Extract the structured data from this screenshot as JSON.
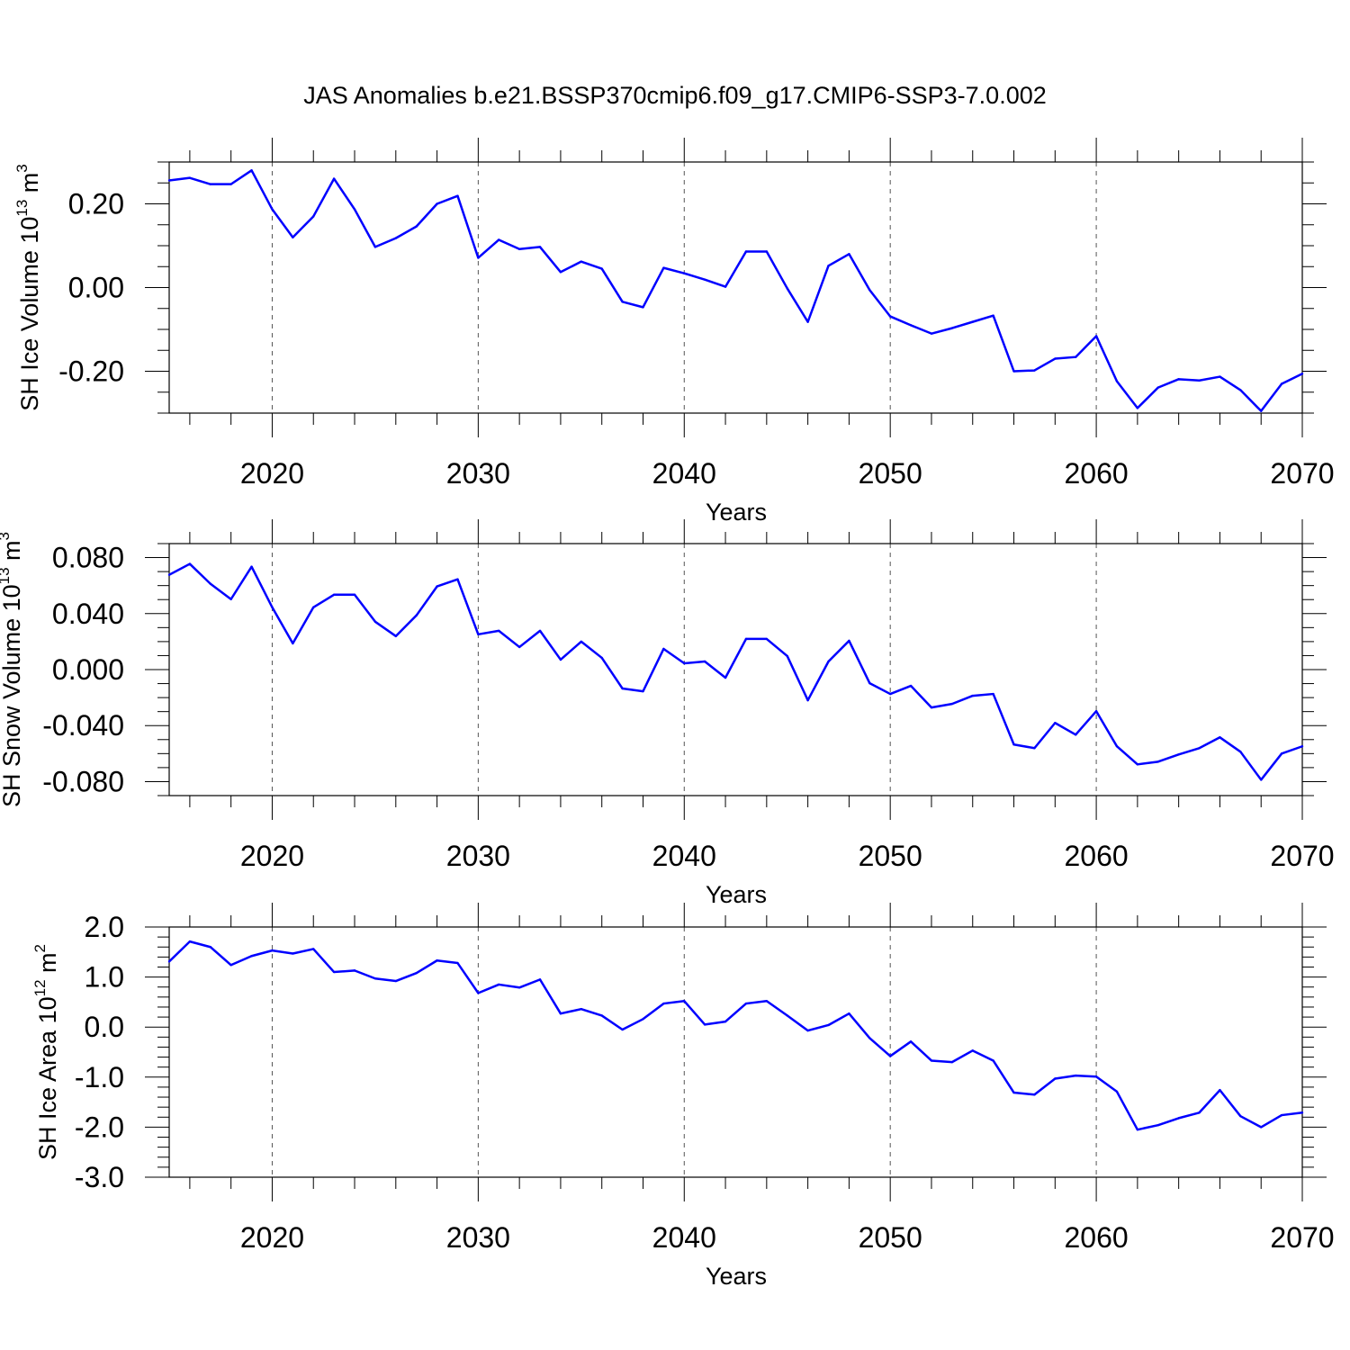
{
  "title": "JAS Anomalies b.e21.BSSP370cmip6.f09_g17.CMIP6-SSP3-7.0.002",
  "colors": {
    "line": "#0000ff",
    "axis": "#000000",
    "grid": "#555555"
  },
  "chart_data": [
    {
      "type": "line",
      "ylabel": "SH Ice Volume 10",
      "ylabel_sup": "13",
      "ylabel_unit": " m",
      "ylabel_unit_sup": "3",
      "xlabel": "Years",
      "xlim": [
        2015,
        2070
      ],
      "ylim": [
        -0.3,
        0.3
      ],
      "grid": "dashed vertical at major x ticks",
      "x_ticks": [
        "2020",
        "2030",
        "2040",
        "2050",
        "2060",
        "2070"
      ],
      "y_ticks": [
        "0.20",
        "0.00",
        "-0.20"
      ],
      "y_tick_values": [
        0.2,
        0.0,
        -0.2
      ],
      "x": [
        2015,
        2016,
        2017,
        2018,
        2019,
        2020,
        2021,
        2022,
        2023,
        2024,
        2025,
        2026,
        2027,
        2028,
        2029,
        2030,
        2031,
        2032,
        2033,
        2034,
        2035,
        2036,
        2037,
        2038,
        2039,
        2040,
        2041,
        2042,
        2043,
        2044,
        2045,
        2046,
        2047,
        2048,
        2049,
        2050,
        2051,
        2052,
        2053,
        2054,
        2055,
        2056,
        2057,
        2058,
        2059,
        2060,
        2061,
        2062,
        2063,
        2064,
        2065,
        2066,
        2067,
        2068,
        2069,
        2070
      ],
      "values": [
        0.256,
        0.262,
        0.247,
        0.247,
        0.28,
        0.187,
        0.12,
        0.17,
        0.26,
        0.187,
        0.097,
        0.118,
        0.146,
        0.2,
        0.219,
        0.071,
        0.114,
        0.092,
        0.097,
        0.037,
        0.062,
        0.045,
        -0.034,
        -0.047,
        0.047,
        0.034,
        0.019,
        0.002,
        0.086,
        0.086,
        -0.002,
        -0.082,
        0.052,
        0.08,
        -0.006,
        -0.069,
        -0.09,
        -0.11,
        -0.097,
        -0.082,
        -0.067,
        -0.2,
        -0.198,
        -0.17,
        -0.166,
        -0.116,
        -0.224,
        -0.288,
        -0.239,
        -0.219,
        -0.222,
        -0.213,
        -0.245,
        -0.295,
        -0.23,
        -0.206
      ]
    },
    {
      "type": "line",
      "ylabel": "SH Snow Volume 10",
      "ylabel_sup": "13",
      "ylabel_unit": " m",
      "ylabel_unit_sup": "3",
      "xlabel": "Years",
      "xlim": [
        2015,
        2070
      ],
      "ylim": [
        -0.09,
        0.09
      ],
      "grid": "dashed vertical at major x ticks",
      "x_ticks": [
        "2020",
        "2030",
        "2040",
        "2050",
        "2060",
        "2070"
      ],
      "y_ticks": [
        "0.080",
        "0.040",
        "0.000",
        "-0.040",
        "-0.080"
      ],
      "y_tick_values": [
        0.08,
        0.04,
        0.0,
        -0.04,
        -0.08
      ],
      "x": [
        2015,
        2016,
        2017,
        2018,
        2019,
        2020,
        2021,
        2022,
        2023,
        2024,
        2025,
        2026,
        2027,
        2028,
        2029,
        2030,
        2031,
        2032,
        2033,
        2034,
        2035,
        2036,
        2037,
        2038,
        2039,
        2040,
        2041,
        2042,
        2043,
        2044,
        2045,
        2046,
        2047,
        2048,
        2049,
        2050,
        2051,
        2052,
        2053,
        2054,
        2055,
        2056,
        2057,
        2058,
        2059,
        2060,
        2061,
        2062,
        2063,
        2064,
        2065,
        2066,
        2067,
        2068,
        2069,
        2070
      ],
      "values": [
        0.0677,
        0.0755,
        0.0613,
        0.0503,
        0.0735,
        0.0445,
        0.0187,
        0.0445,
        0.0535,
        0.0535,
        0.0342,
        0.0239,
        0.0387,
        0.0594,
        0.0645,
        0.0252,
        0.0277,
        0.0161,
        0.0277,
        0.0071,
        0.02,
        0.0084,
        -0.0135,
        -0.0155,
        0.0148,
        0.0045,
        0.0058,
        -0.0058,
        0.0219,
        0.0219,
        0.0097,
        -0.0219,
        0.0058,
        0.0206,
        -0.0097,
        -0.0174,
        -0.0116,
        -0.0271,
        -0.0245,
        -0.0187,
        -0.0174,
        -0.0535,
        -0.0561,
        -0.0381,
        -0.0465,
        -0.0297,
        -0.0548,
        -0.0677,
        -0.0658,
        -0.0606,
        -0.0561,
        -0.0484,
        -0.0587,
        -0.0787,
        -0.06,
        -0.0548
      ]
    },
    {
      "type": "line",
      "ylabel": "SH Ice Area 10",
      "ylabel_sup": "12",
      "ylabel_unit": " m",
      "ylabel_unit_sup": "2",
      "xlabel": "Years",
      "xlim": [
        2015,
        2070
      ],
      "ylim": [
        -3.0,
        2.0
      ],
      "grid": "dashed vertical at major x ticks",
      "x_ticks": [
        "2020",
        "2030",
        "2040",
        "2050",
        "2060",
        "2070"
      ],
      "y_ticks": [
        "2.0",
        "1.0",
        "0.0",
        "-1.0",
        "-2.0",
        "-3.0"
      ],
      "y_tick_values": [
        2,
        1,
        0,
        -1,
        -2,
        -3
      ],
      "x": [
        2015,
        2016,
        2017,
        2018,
        2019,
        2020,
        2021,
        2022,
        2023,
        2024,
        2025,
        2026,
        2027,
        2028,
        2029,
        2030,
        2031,
        2032,
        2033,
        2034,
        2035,
        2036,
        2037,
        2038,
        2039,
        2040,
        2041,
        2042,
        2043,
        2044,
        2045,
        2046,
        2047,
        2048,
        2049,
        2050,
        2051,
        2052,
        2053,
        2054,
        2055,
        2056,
        2057,
        2058,
        2059,
        2060,
        2061,
        2062,
        2063,
        2064,
        2065,
        2066,
        2067,
        2068,
        2069,
        2070
      ],
      "values": [
        1.31,
        1.71,
        1.6,
        1.24,
        1.42,
        1.53,
        1.47,
        1.56,
        1.1,
        1.13,
        0.97,
        0.92,
        1.08,
        1.33,
        1.28,
        0.68,
        0.85,
        0.79,
        0.95,
        0.27,
        0.36,
        0.23,
        -0.05,
        0.16,
        0.47,
        0.52,
        0.05,
        0.11,
        0.47,
        0.52,
        0.23,
        -0.07,
        0.04,
        0.27,
        -0.22,
        -0.58,
        -0.29,
        -0.67,
        -0.7,
        -0.47,
        -0.67,
        -1.31,
        -1.35,
        -1.03,
        -0.97,
        -0.99,
        -1.29,
        -2.05,
        -1.96,
        -1.82,
        -1.71,
        -1.26,
        -1.78,
        -2.0,
        -1.76,
        -1.71
      ]
    }
  ]
}
